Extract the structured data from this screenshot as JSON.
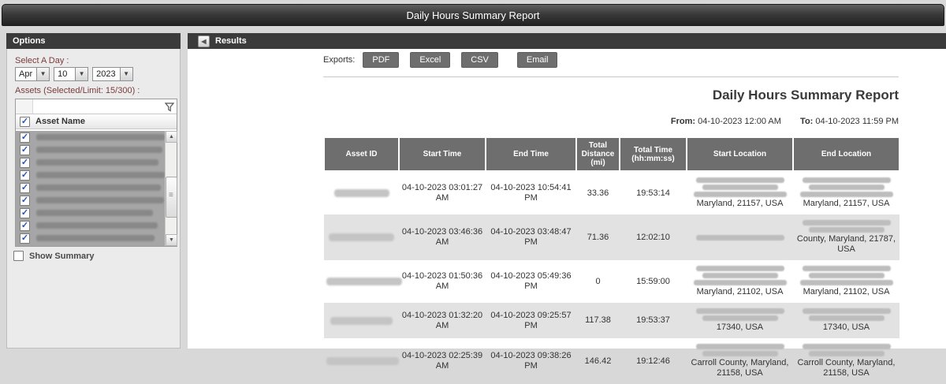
{
  "title_bar": {
    "title": "Daily Hours Summary Report"
  },
  "sidebar": {
    "header": "Options",
    "select_day_label": "Select A Day :",
    "day": {
      "month": "Apr",
      "day": "10",
      "year": "2023"
    },
    "assets_label": "Assets (Selected/Limit: 15/300) :",
    "asset_table": {
      "header": "Asset Name"
    },
    "assets": [
      {
        "name": "",
        "redacted": true,
        "checked": true
      },
      {
        "name": "",
        "redacted": true,
        "checked": true
      },
      {
        "name": "",
        "redacted": true,
        "checked": true
      },
      {
        "name": "",
        "redacted": true,
        "checked": true
      },
      {
        "name": "",
        "redacted": true,
        "checked": true
      },
      {
        "name": "",
        "redacted": true,
        "checked": true
      },
      {
        "name": "",
        "redacted": true,
        "checked": true
      },
      {
        "name": "",
        "redacted": true,
        "checked": true
      },
      {
        "name": "",
        "redacted": true,
        "checked": true
      }
    ],
    "show_summary_label": "Show Summary",
    "show_summary_checked": false
  },
  "results": {
    "header": "Results",
    "exports_label": "Exports:",
    "export_buttons": [
      "PDF",
      "Excel",
      "CSV",
      "Email"
    ],
    "report_title": "Daily Hours Summary Report",
    "from_label": "From:",
    "from_value": "04-10-2023 12:00 AM",
    "to_label": "To:",
    "to_value": "04-10-2023 11:59 PM",
    "table": {
      "columns": [
        "Asset ID",
        "Start Time",
        "End Time",
        "Total Distance (mi)",
        "Total Time (hh:mm:ss)",
        "Start Location",
        "End Location"
      ],
      "rows": [
        {
          "asset_id": {
            "redacted": true
          },
          "start_time": "04-10-2023 03:01:27 AM",
          "end_time": "04-10-2023 10:54:41 PM",
          "total_distance_mi": "33.36",
          "total_time": "19:53:14",
          "start_location": {
            "redacted_lines": 3,
            "visible": "Maryland, 21157, USA"
          },
          "end_location": {
            "redacted_lines": 3,
            "visible": "Maryland, 21157, USA"
          }
        },
        {
          "asset_id": {
            "redacted": true
          },
          "start_time": "04-10-2023 03:46:36 AM",
          "end_time": "04-10-2023 03:48:47 PM",
          "total_distance_mi": "71.36",
          "total_time": "12:02:10",
          "start_location": {
            "redacted_lines": 1,
            "visible": ""
          },
          "end_location": {
            "redacted_lines": 2,
            "visible": "County, Maryland, 21787, USA"
          }
        },
        {
          "asset_id": {
            "redacted": true
          },
          "start_time": "04-10-2023 01:50:36 AM",
          "end_time": "04-10-2023 05:49:36 PM",
          "total_distance_mi": "0",
          "total_time": "15:59:00",
          "start_location": {
            "redacted_lines": 3,
            "visible": "Maryland, 21102, USA"
          },
          "end_location": {
            "redacted_lines": 3,
            "visible": "Maryland, 21102, USA"
          }
        },
        {
          "asset_id": {
            "redacted": true
          },
          "start_time": "04-10-2023 01:32:20 AM",
          "end_time": "04-10-2023 09:25:57 PM",
          "total_distance_mi": "117.38",
          "total_time": "19:53:37",
          "start_location": {
            "redacted_lines": 2,
            "visible": "17340, USA"
          },
          "end_location": {
            "redacted_lines": 2,
            "visible": "17340, USA"
          }
        },
        {
          "asset_id": {
            "redacted": true
          },
          "start_time": "04-10-2023 02:25:39 AM",
          "end_time": "04-10-2023 09:38:26 PM",
          "total_distance_mi": "146.42",
          "total_time": "19:12:46",
          "start_location": {
            "redacted_lines": 2,
            "visible": "Carroll County, Maryland, 21158, USA"
          },
          "end_location": {
            "redacted_lines": 2,
            "visible": "Carroll County, Maryland, 21158, USA"
          }
        }
      ]
    }
  }
}
